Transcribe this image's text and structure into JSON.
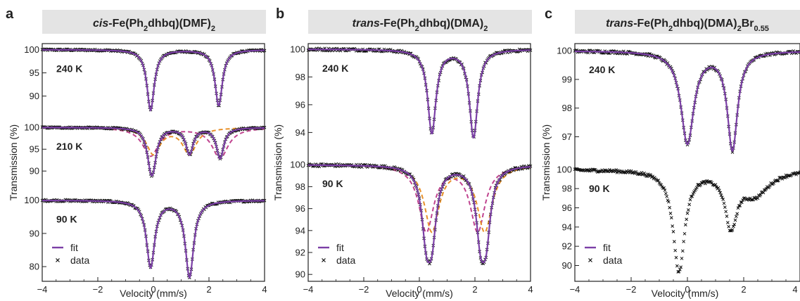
{
  "colors": {
    "fit": "#7b3fa6",
    "comp1": "#c0448f",
    "comp2": "#e8902a",
    "data": "#111111",
    "header_bg": "#e4e4e4"
  },
  "chart_data": [
    {
      "type": "scatter",
      "panel_letter": "a",
      "title_italic": "cis",
      "title_rest": "-Fe(Ph",
      "title_sub1": "2",
      "title_mid": "dhbq)(DMF)",
      "title_sub2": "2",
      "title_sup": "",
      "xlabel": "Velocity (mm/s)",
      "ylabel": "Transmission (%)",
      "xlim": [
        -4,
        4
      ],
      "xticks": [
        -4,
        -2,
        0,
        2,
        4
      ],
      "legend": {
        "fit": "fit",
        "data": "data"
      },
      "spectra": [
        {
          "temp_label": "240 K",
          "ylim": [
            86,
            101
          ],
          "yticks": [
            100,
            95,
            90
          ],
          "lines": [
            {
              "centers": [
                -0.1,
                2.35
              ],
              "depths": [
                13,
                12
              ],
              "widths": [
                0.16,
                0.16
              ]
            }
          ],
          "components": []
        },
        {
          "temp_label": "210 K",
          "ylim": [
            86,
            101
          ],
          "yticks": [
            100,
            95,
            90
          ],
          "lines": [
            {
              "centers": [
                -0.1,
                2.4,
                0.0,
                1.3
              ],
              "depths": [
                6.5,
                7,
                5.5,
                6
              ],
              "widths": [
                0.16,
                0.16,
                0.16,
                0.16
              ]
            }
          ],
          "components": [
            {
              "centers": [
                -0.1,
                2.4
              ],
              "depths": [
                6.5,
                7
              ],
              "widths": [
                0.35,
                0.35
              ],
              "style": "comp1"
            },
            {
              "centers": [
                0.0,
                1.3
              ],
              "depths": [
                6,
                6
              ],
              "widths": [
                0.3,
                0.3
              ],
              "style": "comp2"
            }
          ]
        },
        {
          "temp_label": "90 K",
          "ylim": [
            76,
            101
          ],
          "yticks": [
            100,
            90,
            80
          ],
          "lines": [
            {
              "centers": [
                -0.1,
                1.3
              ],
              "depths": [
                20,
                23
              ],
              "widths": [
                0.18,
                0.18
              ]
            }
          ],
          "components": []
        }
      ]
    },
    {
      "type": "scatter",
      "panel_letter": "b",
      "title_italic": "trans",
      "title_rest": "-Fe(Ph",
      "title_sub1": "2",
      "title_mid": "dhbq)(DMA)",
      "title_sub2": "2",
      "title_sup": "",
      "xlabel": "Velocity (mm/s)",
      "ylabel": "Transmission (%)",
      "xlim": [
        -4,
        4
      ],
      "xticks": [
        -4,
        -2,
        0,
        2,
        4
      ],
      "legend": {
        "fit": "fit",
        "data": "data"
      },
      "spectra": [
        {
          "temp_label": "240 K",
          "ylim": [
            92.5,
            100.3
          ],
          "yticks": [
            100,
            98,
            96,
            94
          ],
          "lines": [
            {
              "centers": [
                0.45,
                1.95
              ],
              "depths": [
                6.0,
                6.3
              ],
              "widths": [
                0.18,
                0.18
              ]
            }
          ],
          "components": []
        },
        {
          "temp_label": "90 K",
          "ylim": [
            89.5,
            100.4
          ],
          "yticks": [
            100,
            98,
            96,
            94,
            92,
            90
          ],
          "lines": [
            {
              "centers": [
                0.25,
                2.2,
                0.45,
                2.4
              ],
              "depths": [
                5.5,
                5.5,
                5.5,
                5.5
              ],
              "widths": [
                0.2,
                0.2,
                0.2,
                0.2
              ]
            }
          ],
          "components": [
            {
              "centers": [
                0.25,
                2.1
              ],
              "depths": [
                6,
                6
              ],
              "widths": [
                0.32,
                0.32
              ],
              "style": "comp1"
            },
            {
              "centers": [
                0.45,
                2.35
              ],
              "depths": [
                6,
                6
              ],
              "widths": [
                0.32,
                0.32
              ],
              "style": "comp2"
            }
          ]
        }
      ]
    },
    {
      "type": "scatter",
      "panel_letter": "c",
      "title_italic": "trans",
      "title_rest": "-Fe(Ph",
      "title_sub1": "2",
      "title_mid": "dhbq)(DMA)",
      "title_sub2": "2",
      "title_rest2": "Br",
      "title_sup": "0.55",
      "xlabel": "Velocity (mm/s)",
      "ylabel": "Transmission (%)",
      "xlim": [
        -4,
        4
      ],
      "xticks": [
        -4,
        -2,
        0,
        2,
        4
      ],
      "legend": {
        "fit": "fit",
        "data": "data"
      },
      "spectra": [
        {
          "temp_label": "240 K",
          "ylim": [
            96.3,
            100.2
          ],
          "yticks": [
            100,
            99,
            98,
            97
          ],
          "lines": [
            {
              "centers": [
                0.0,
                1.6
              ],
              "depths": [
                3.2,
                3.4
              ],
              "widths": [
                0.28,
                0.22
              ]
            }
          ],
          "components": []
        },
        {
          "temp_label": "90 K",
          "ylim": [
            88.5,
            100.5
          ],
          "yticks": [
            100,
            98,
            96,
            94,
            92,
            90
          ],
          "lines": [
            {
              "centers": [
                -0.3,
                1.55,
                2.4
              ],
              "depths": [
                10.5,
                5.5,
                2.5
              ],
              "widths": [
                0.25,
                0.25,
                0.6
              ]
            }
          ],
          "components": [],
          "data_only": true
        }
      ]
    }
  ]
}
